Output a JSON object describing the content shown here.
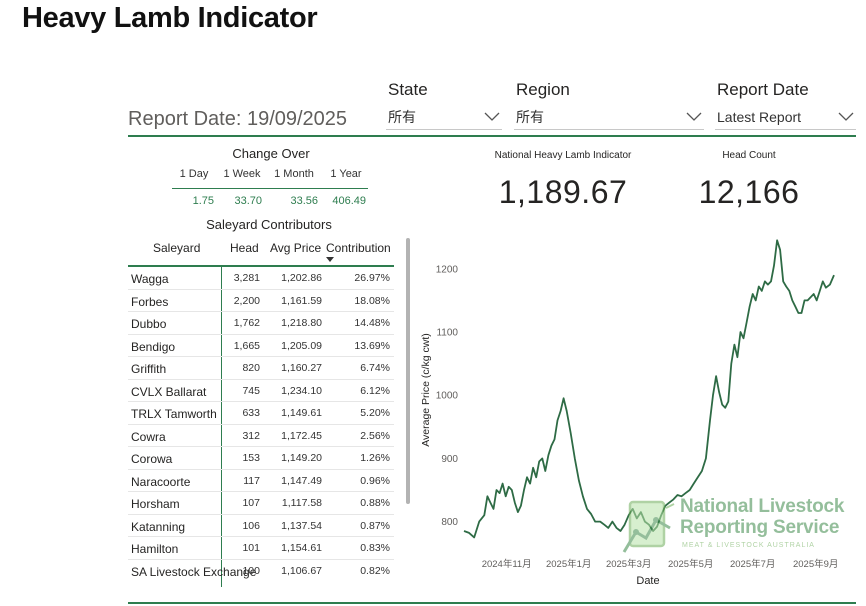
{
  "page": {
    "title": "Heavy Lamb Indicator"
  },
  "slicers": {
    "state": {
      "label": "State",
      "value": "所有"
    },
    "region": {
      "label": "Region",
      "value": "所有"
    },
    "report_date": {
      "label": "Report Date",
      "value": "Latest Report"
    }
  },
  "report_date_text": "Report Date: 19/09/2025",
  "change_over": {
    "title": "Change Over",
    "columns": [
      "1 Day",
      "1 Week",
      "1 Month",
      "1 Year"
    ],
    "values": [
      "1.75",
      "33.70",
      "33.56",
      "406.49"
    ]
  },
  "saleyard": {
    "title": "Saleyard Contributors",
    "headers": {
      "saleyard": "Saleyard",
      "head": "Head",
      "avg_price": "Avg Price",
      "contribution": "Contribution"
    },
    "rows": [
      {
        "name": "Wagga",
        "head": "3,281",
        "avg": "1,202.86",
        "contrib": "26.97%"
      },
      {
        "name": "Forbes",
        "head": "2,200",
        "avg": "1,161.59",
        "contrib": "18.08%"
      },
      {
        "name": "Dubbo",
        "head": "1,762",
        "avg": "1,218.80",
        "contrib": "14.48%"
      },
      {
        "name": "Bendigo",
        "head": "1,665",
        "avg": "1,205.09",
        "contrib": "13.69%"
      },
      {
        "name": "Griffith",
        "head": "820",
        "avg": "1,160.27",
        "contrib": "6.74%"
      },
      {
        "name": "CVLX Ballarat",
        "head": "745",
        "avg": "1,234.10",
        "contrib": "6.12%"
      },
      {
        "name": "TRLX Tamworth",
        "head": "633",
        "avg": "1,149.61",
        "contrib": "5.20%"
      },
      {
        "name": "Cowra",
        "head": "312",
        "avg": "1,172.45",
        "contrib": "2.56%"
      },
      {
        "name": "Corowa",
        "head": "153",
        "avg": "1,149.20",
        "contrib": "1.26%"
      },
      {
        "name": "Naracoorte",
        "head": "117",
        "avg": "1,147.49",
        "contrib": "0.96%"
      },
      {
        "name": "Horsham",
        "head": "107",
        "avg": "1,117.58",
        "contrib": "0.88%"
      },
      {
        "name": "Katanning",
        "head": "106",
        "avg": "1,137.54",
        "contrib": "0.87%"
      },
      {
        "name": "Hamilton",
        "head": "101",
        "avg": "1,154.61",
        "contrib": "0.83%"
      },
      {
        "name": "SA Livestock Exchange",
        "head": "100",
        "avg": "1,106.67",
        "contrib": "0.82%"
      }
    ]
  },
  "kpis": {
    "indicator": {
      "label": "National Heavy Lamb Indicator",
      "value": "1,189.67"
    },
    "head_count": {
      "label": "Head Count",
      "value": "12,166"
    }
  },
  "logo": {
    "line1": "National Livestock",
    "line2": "Reporting Service",
    "tagline": "MEAT & LIVESTOCK AUSTRALIA"
  },
  "colors": {
    "accent": "#2e7d4f",
    "line": "#2e6b45"
  },
  "chart_data": {
    "type": "line",
    "xlabel": "Date",
    "ylabel": "Average Price (c/kg cwt)",
    "ylim": [
      755,
      1255
    ],
    "y_ticks": [
      800,
      900,
      1000,
      1100,
      1200
    ],
    "x_tick_labels": [
      "2024年11月",
      "2025年1月",
      "2025年3月",
      "2025年5月",
      "2025年7月",
      "2025年9月"
    ],
    "x_tick_dates": [
      "2024-11-01",
      "2025-01-01",
      "2025-03-01",
      "2025-05-01",
      "2025-07-01",
      "2025-09-01"
    ],
    "grid": false,
    "series": [
      {
        "points": [
          [
            "2024-09-20",
            785
          ],
          [
            "2024-09-25",
            782
          ],
          [
            "2024-09-30",
            775
          ],
          [
            "2024-10-05",
            800
          ],
          [
            "2024-10-10",
            810
          ],
          [
            "2024-10-13",
            840
          ],
          [
            "2024-10-16",
            830
          ],
          [
            "2024-10-19",
            820
          ],
          [
            "2024-10-22",
            850
          ],
          [
            "2024-10-25",
            845
          ],
          [
            "2024-10-28",
            860
          ],
          [
            "2024-10-31",
            840
          ],
          [
            "2024-11-03",
            855
          ],
          [
            "2024-11-06",
            850
          ],
          [
            "2024-11-09",
            830
          ],
          [
            "2024-11-12",
            815
          ],
          [
            "2024-11-15",
            825
          ],
          [
            "2024-11-18",
            850
          ],
          [
            "2024-11-21",
            870
          ],
          [
            "2024-11-24",
            860
          ],
          [
            "2024-11-27",
            885
          ],
          [
            "2024-11-30",
            870
          ],
          [
            "2024-12-03",
            895
          ],
          [
            "2024-12-06",
            900
          ],
          [
            "2024-12-09",
            880
          ],
          [
            "2024-12-12",
            905
          ],
          [
            "2024-12-15",
            920
          ],
          [
            "2024-12-18",
            930
          ],
          [
            "2024-12-21",
            960
          ],
          [
            "2024-12-24",
            975
          ],
          [
            "2024-12-27",
            995
          ],
          [
            "2024-12-30",
            975
          ],
          [
            "2025-01-03",
            940
          ],
          [
            "2025-01-07",
            900
          ],
          [
            "2025-01-11",
            865
          ],
          [
            "2025-01-15",
            840
          ],
          [
            "2025-01-19",
            820
          ],
          [
            "2025-01-23",
            812
          ],
          [
            "2025-01-27",
            800
          ],
          [
            "2025-02-01",
            800
          ],
          [
            "2025-02-05",
            795
          ],
          [
            "2025-02-09",
            790
          ],
          [
            "2025-02-13",
            800
          ],
          [
            "2025-02-17",
            790
          ],
          [
            "2025-02-21",
            785
          ],
          [
            "2025-02-25",
            795
          ],
          [
            "2025-03-01",
            810
          ],
          [
            "2025-03-05",
            820
          ],
          [
            "2025-03-09",
            805
          ],
          [
            "2025-03-13",
            815
          ],
          [
            "2025-03-17",
            800
          ],
          [
            "2025-03-21",
            795
          ],
          [
            "2025-03-25",
            785
          ],
          [
            "2025-03-29",
            792
          ],
          [
            "2025-04-02",
            810
          ],
          [
            "2025-04-06",
            825
          ],
          [
            "2025-04-10",
            830
          ],
          [
            "2025-04-14",
            835
          ],
          [
            "2025-04-18",
            842
          ],
          [
            "2025-04-22",
            840
          ],
          [
            "2025-04-26",
            845
          ],
          [
            "2025-04-30",
            850
          ],
          [
            "2025-05-04",
            860
          ],
          [
            "2025-05-08",
            870
          ],
          [
            "2025-05-12",
            880
          ],
          [
            "2025-05-16",
            900
          ],
          [
            "2025-05-20",
            960
          ],
          [
            "2025-05-23",
            1000
          ],
          [
            "2025-05-26",
            1030
          ],
          [
            "2025-05-29",
            1005
          ],
          [
            "2025-06-01",
            985
          ],
          [
            "2025-06-04",
            980
          ],
          [
            "2025-06-07",
            990
          ],
          [
            "2025-06-10",
            1050
          ],
          [
            "2025-06-13",
            1080
          ],
          [
            "2025-06-16",
            1060
          ],
          [
            "2025-06-19",
            1100
          ],
          [
            "2025-06-22",
            1090
          ],
          [
            "2025-06-25",
            1115
          ],
          [
            "2025-06-28",
            1140
          ],
          [
            "2025-07-01",
            1160
          ],
          [
            "2025-07-04",
            1150
          ],
          [
            "2025-07-07",
            1172
          ],
          [
            "2025-07-10",
            1165
          ],
          [
            "2025-07-13",
            1180
          ],
          [
            "2025-07-16",
            1175
          ],
          [
            "2025-07-19",
            1180
          ],
          [
            "2025-07-22",
            1205
          ],
          [
            "2025-07-25",
            1245
          ],
          [
            "2025-07-28",
            1230
          ],
          [
            "2025-07-31",
            1180
          ],
          [
            "2025-08-03",
            1172
          ],
          [
            "2025-08-06",
            1165
          ],
          [
            "2025-08-09",
            1150
          ],
          [
            "2025-08-12",
            1140
          ],
          [
            "2025-08-15",
            1130
          ],
          [
            "2025-08-18",
            1130
          ],
          [
            "2025-08-21",
            1150
          ],
          [
            "2025-08-24",
            1150
          ],
          [
            "2025-08-27",
            1155
          ],
          [
            "2025-08-30",
            1160
          ],
          [
            "2025-09-02",
            1150
          ],
          [
            "2025-09-05",
            1165
          ],
          [
            "2025-09-08",
            1180
          ],
          [
            "2025-09-11",
            1170
          ],
          [
            "2025-09-15",
            1175
          ],
          [
            "2025-09-19",
            1190
          ]
        ]
      }
    ]
  }
}
